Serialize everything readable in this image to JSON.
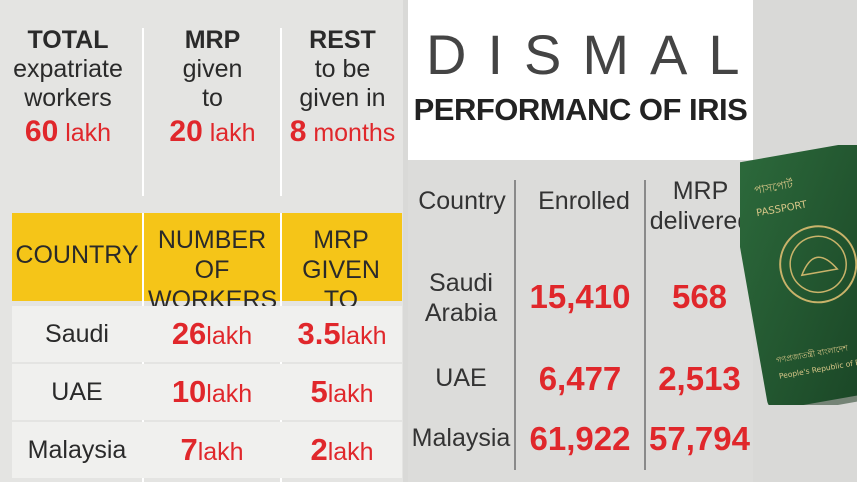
{
  "summary": {
    "total": {
      "head": "TOTAL",
      "line1": "expatriate",
      "line2": "workers",
      "value": "60",
      "unit": "lakh"
    },
    "mrp": {
      "head": "MRP",
      "line1": "given",
      "line2": "to",
      "value": "20",
      "unit": "lakh"
    },
    "rest": {
      "head": "REST",
      "line1": "to be",
      "line2": "given in",
      "value": "8",
      "unit": "months"
    }
  },
  "country_table": {
    "headers": {
      "country": "COUNTRY",
      "workers_1": "NUMBER OF",
      "workers_2": "WORKERS",
      "mrp_1": "MRP",
      "mrp_2": "GIVEN TO"
    },
    "rows": [
      {
        "country": "Saudi Arabia",
        "workers": "26",
        "workers_unit": "lakh",
        "mrp": "3.5",
        "mrp_unit": "lakh"
      },
      {
        "country": "UAE",
        "workers": "10",
        "workers_unit": "lakh",
        "mrp": "5",
        "mrp_unit": "lakh"
      },
      {
        "country": "Malaysia",
        "workers": "7",
        "workers_unit": "lakh",
        "mrp": "2",
        "mrp_unit": "lakh"
      }
    ]
  },
  "iris": {
    "title_line1": "DISMAL",
    "title_line2": "PERFORMANC OF IRIS",
    "headers": {
      "country": "Country",
      "enrolled": "Enrolled",
      "mrp_1": "MRP",
      "mrp_2": "delivered"
    },
    "rows": [
      {
        "country_1": "Saudi",
        "country_2": "Arabia",
        "enrolled": "15,410",
        "delivered": "568"
      },
      {
        "country_1": "UAE",
        "country_2": "",
        "enrolled": "6,477",
        "delivered": "2,513"
      },
      {
        "country_1": "Malaysia",
        "country_2": "",
        "enrolled": "61,922",
        "delivered": "57,794"
      }
    ]
  },
  "passport": {
    "label_bn": "পাসপোর্ট",
    "label": "PASSPORT",
    "republic_bn": "গণপ্রজাতন্ত্রী বাংলাদেশ",
    "republic": "People's Republic of Ba"
  },
  "colors": {
    "accent_red": "#e0272b",
    "header_yellow": "#f5c518",
    "passport_green": "#1f5a2f"
  }
}
